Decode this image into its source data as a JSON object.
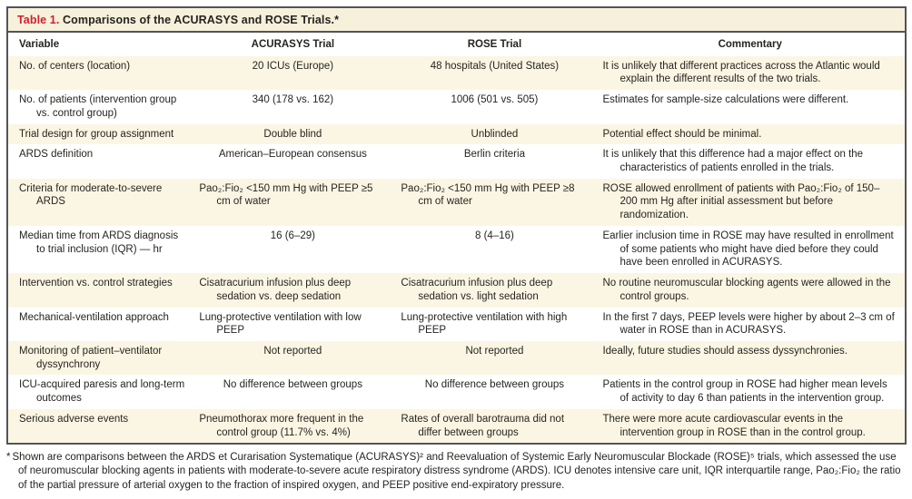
{
  "colors": {
    "accent_red": "#d11f2f",
    "row_cream": "#fbf6e3",
    "title_bar_cream": "#f7f0db",
    "border_dark": "#53545a"
  },
  "table": {
    "label": "Table 1.",
    "title": "Comparisons of the ACURASYS and ROSE Trials.*",
    "columns": [
      "Variable",
      "ACURASYS Trial",
      "ROSE Trial",
      "Commentary"
    ],
    "rows": [
      {
        "variable": "No. of centers (location)",
        "acurasys": "20 ICUs (Europe)",
        "rose": "48 hospitals (United States)",
        "commentary": "It is unlikely that different practices across the Atlantic would explain the different results of the two trials."
      },
      {
        "variable": "No. of patients (intervention group vs. control group)",
        "acurasys": "340 (178 vs. 162)",
        "rose": "1006 (501 vs. 505)",
        "commentary": "Estimates for sample-size calculations were different."
      },
      {
        "variable": "Trial design for group assignment",
        "acurasys": "Double blind",
        "rose": "Unblinded",
        "commentary": "Potential effect should be minimal."
      },
      {
        "variable": "ARDS definition",
        "acurasys": "American–European consensus",
        "rose": "Berlin criteria",
        "commentary": "It is unlikely that this difference had a major effect on the characteristics of patients enrolled in the trials."
      },
      {
        "variable": "Criteria for moderate-to-severe ARDS",
        "acurasys": "Pao₂:Fio₂ <150 mm Hg with PEEP ≥5 cm of water",
        "rose": "Pao₂:Fio₂ <150 mm Hg with PEEP ≥8 cm of water",
        "commentary": "ROSE allowed enrollment of patients with Pao₂:Fio₂ of 150–200 mm Hg after initial assessment but before randomization."
      },
      {
        "variable": "Median time from ARDS diagnosis to trial inclusion (IQR) — hr",
        "acurasys": "16 (6–29)",
        "rose": "8 (4–16)",
        "commentary": "Earlier inclusion time in ROSE may have resulted in enrollment of some patients who might have died before they could have been enrolled in ACURASYS."
      },
      {
        "variable": "Intervention vs. control strategies",
        "acurasys": "Cisatracurium infusion plus deep sedation vs. deep sedation",
        "rose": "Cisatracurium infusion plus deep sedation vs. light sedation",
        "commentary": "No routine neuromuscular blocking agents were allowed in the control groups."
      },
      {
        "variable": "Mechanical-ventilation approach",
        "acurasys": "Lung-protective ventilation with low PEEP",
        "rose": "Lung-protective ventilation with high PEEP",
        "commentary": "In the first 7 days, PEEP levels were higher by about 2–3 cm of water in ROSE than in ACURASYS."
      },
      {
        "variable": "Monitoring of patient–ventilator dyssynchrony",
        "acurasys": "Not reported",
        "rose": "Not reported",
        "commentary": "Ideally, future studies should assess dyssynchronies."
      },
      {
        "variable": "ICU-acquired paresis and long-term outcomes",
        "acurasys": "No difference between groups",
        "rose": "No difference between groups",
        "commentary": "Patients in the control group in ROSE had higher mean levels of activity to day 6 than patients in the intervention group."
      },
      {
        "variable": "Serious adverse events",
        "acurasys": "Pneumothorax more frequent in the control group (11.7% vs. 4%)",
        "rose": "Rates of overall barotrauma did not differ between groups",
        "commentary": "There were more acute cardiovascular events in the intervention group in ROSE than in the control group."
      }
    ],
    "footnote_marker": "*",
    "footnote": "Shown are comparisons between the ARDS et Curarisation Systematique (ACURASYS)² and Reevaluation of Systemic Early Neuromuscular Blockade (ROSE)⁵ trials, which assessed the use of neuromuscular blocking agents in patients with moderate-to-severe acute respiratory distress syndrome (ARDS). ICU denotes intensive care unit, IQR interquartile range, Pao₂:Fio₂ the ratio of the partial pressure of arterial oxygen to the fraction of inspired oxygen, and PEEP positive end-expiratory pressure."
  }
}
